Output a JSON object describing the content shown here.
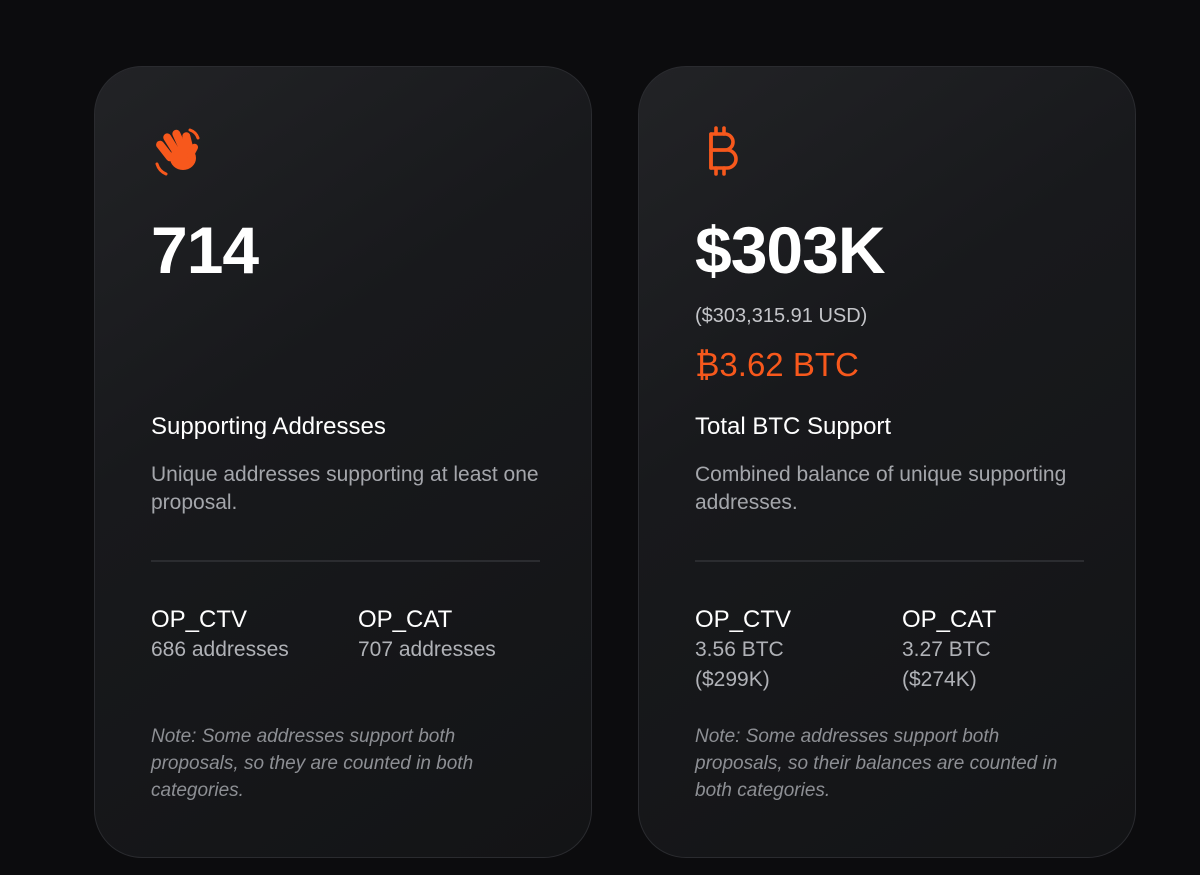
{
  "colors": {
    "accent": "#f7581c",
    "page_background": "#0c0c0e",
    "card_background": "#18191c"
  },
  "cards": [
    {
      "icon": "waving-hand-icon",
      "metric": "714",
      "label": "Supporting Addresses",
      "description": "Unique addresses supporting at least one proposal.",
      "breakdown": [
        {
          "name": "OP_CTV",
          "value": "686 addresses"
        },
        {
          "name": "OP_CAT",
          "value": "707 addresses"
        }
      ],
      "note": "Note: Some addresses support both proposals, so they are counted in both categories."
    },
    {
      "icon": "bitcoin-icon",
      "metric": "$303K",
      "metric_usd": "($303,315.91 USD)",
      "metric_btc": "₿3.62 BTC",
      "label": "Total BTC Support",
      "description": "Combined balance of unique supporting addresses.",
      "breakdown": [
        {
          "name": "OP_CTV",
          "value": "3.56 BTC ($299K)"
        },
        {
          "name": "OP_CAT",
          "value": "3.27 BTC ($274K)"
        }
      ],
      "note": "Note: Some addresses support both proposals, so their balances are counted in both categories."
    }
  ]
}
